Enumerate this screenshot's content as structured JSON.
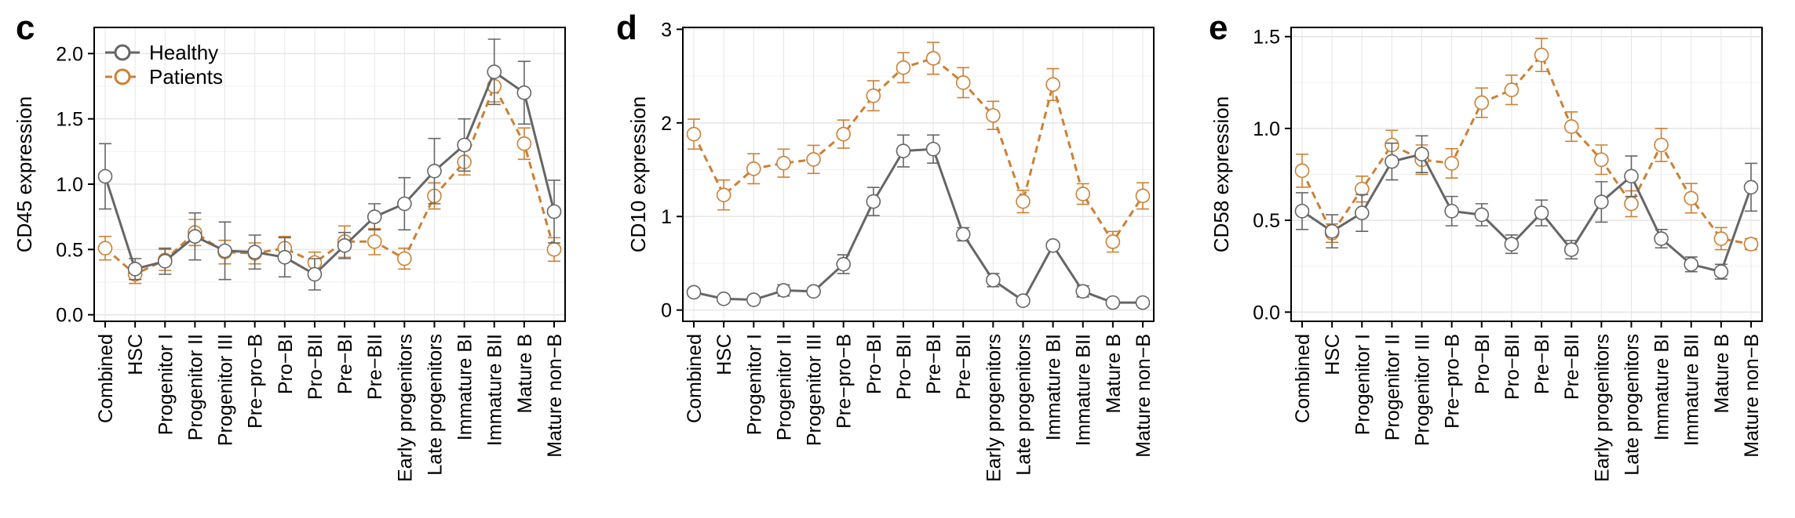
{
  "legend": {
    "healthy_label": "Healthy",
    "patients_label": "Patients"
  },
  "colors": {
    "healthy": "#666666",
    "patients": "#cc8033",
    "grid": "#e6e6e6",
    "axis": "#000000"
  },
  "chart_data": [
    {
      "panel_letter": "c",
      "type": "line",
      "ylabel": "CD45 expression",
      "ylim": [
        -0.05,
        2.2
      ],
      "yticks": [
        "0.0",
        "0.5",
        "1.0",
        "1.5",
        "2.0"
      ],
      "categories": [
        "Combined",
        "HSC",
        "Progenitor I",
        "Progenitor II",
        "Progenitor III",
        "Pre−pro−B",
        "Pro−BI",
        "Pro−BII",
        "Pre−BI",
        "Pre−BII",
        "Early progenitors",
        "Late progenitors",
        "Immature BI",
        "Immature BII",
        "Mature B",
        "Mature non−B"
      ],
      "legend_position": "top-left",
      "grid": true,
      "series": [
        {
          "name": "Healthy",
          "style": "solid",
          "values": [
            1.06,
            0.35,
            0.41,
            0.6,
            0.49,
            0.48,
            0.44,
            0.31,
            0.53,
            0.75,
            0.85,
            1.1,
            1.3,
            1.86,
            1.7,
            0.79
          ],
          "err": [
            0.25,
            0.08,
            0.1,
            0.18,
            0.22,
            0.13,
            0.15,
            0.12,
            0.1,
            0.1,
            0.2,
            0.25,
            0.2,
            0.25,
            0.24,
            0.24
          ]
        },
        {
          "name": "Patients",
          "style": "dashed",
          "values": [
            0.51,
            0.31,
            0.42,
            0.63,
            0.48,
            0.47,
            0.51,
            0.4,
            0.56,
            0.56,
            0.43,
            0.91,
            1.17,
            1.75,
            1.31,
            0.5
          ],
          "err": [
            0.09,
            0.07,
            0.08,
            0.1,
            0.09,
            0.08,
            0.09,
            0.08,
            0.12,
            0.1,
            0.08,
            0.1,
            0.1,
            0.12,
            0.12,
            0.09
          ]
        }
      ]
    },
    {
      "panel_letter": "d",
      "type": "line",
      "ylabel": "CD10 expression",
      "ylim": [
        -0.12,
        3.02
      ],
      "yticks": [
        "0",
        "1",
        "2",
        "3"
      ],
      "categories": [
        "Combined",
        "HSC",
        "Progenitor I",
        "Progenitor II",
        "Progenitor III",
        "Pre−pro−B",
        "Pro−BI",
        "Pro−BII",
        "Pre−BI",
        "Pre−BII",
        "Early progenitors",
        "Late progenitors",
        "Immature BI",
        "Immature BII",
        "Mature B",
        "Mature non−B"
      ],
      "grid": true,
      "series": [
        {
          "name": "Healthy",
          "style": "solid",
          "values": [
            0.19,
            0.12,
            0.11,
            0.21,
            0.2,
            0.49,
            1.16,
            1.7,
            1.72,
            0.81,
            0.32,
            0.1,
            0.69,
            0.2,
            0.08,
            0.08
          ],
          "err": [
            0.04,
            0.03,
            0.03,
            0.06,
            0.04,
            0.1,
            0.15,
            0.17,
            0.15,
            0.07,
            0.07,
            0.03,
            0.04,
            0.06,
            0.03,
            0.03
          ]
        },
        {
          "name": "Patients",
          "style": "dashed",
          "values": [
            1.88,
            1.23,
            1.51,
            1.57,
            1.61,
            1.88,
            2.29,
            2.59,
            2.69,
            2.43,
            2.08,
            1.16,
            2.41,
            1.24,
            0.73,
            1.22
          ],
          "err": [
            0.16,
            0.16,
            0.16,
            0.15,
            0.15,
            0.15,
            0.16,
            0.16,
            0.17,
            0.16,
            0.15,
            0.12,
            0.17,
            0.11,
            0.11,
            0.14
          ]
        }
      ]
    },
    {
      "panel_letter": "e",
      "type": "line",
      "ylabel": "CD58 expression",
      "ylim": [
        -0.05,
        1.55
      ],
      "yticks": [
        "0.0",
        "0.5",
        "1.0",
        "1.5"
      ],
      "categories": [
        "Combined",
        "HSC",
        "Progenitor I",
        "Progenitor II",
        "Progenitor III",
        "Pre−pro−B",
        "Pro−BI",
        "Pro−BII",
        "Pre−BI",
        "Pre−BII",
        "Early progenitors",
        "Late progenitors",
        "Immature BI",
        "Immature BII",
        "Mature B",
        "Mature non−B"
      ],
      "grid": true,
      "series": [
        {
          "name": "Healthy",
          "style": "solid",
          "values": [
            0.55,
            0.44,
            0.54,
            0.82,
            0.86,
            0.55,
            0.53,
            0.37,
            0.54,
            0.34,
            0.6,
            0.74,
            0.4,
            0.26,
            0.22,
            0.68
          ],
          "err": [
            0.1,
            0.09,
            0.1,
            0.1,
            0.1,
            0.08,
            0.06,
            0.05,
            0.07,
            0.05,
            0.11,
            0.11,
            0.05,
            0.04,
            0.04,
            0.13
          ]
        },
        {
          "name": "Patients",
          "style": "dashed",
          "values": [
            0.77,
            0.43,
            0.67,
            0.91,
            0.83,
            0.81,
            1.14,
            1.21,
            1.4,
            1.01,
            0.83,
            0.59,
            0.91,
            0.62,
            0.4,
            0.37
          ],
          "err": [
            0.09,
            0.05,
            0.07,
            0.08,
            0.08,
            0.08,
            0.08,
            0.08,
            0.09,
            0.08,
            0.08,
            0.07,
            0.09,
            0.08,
            0.06,
            0.03
          ]
        }
      ]
    }
  ]
}
